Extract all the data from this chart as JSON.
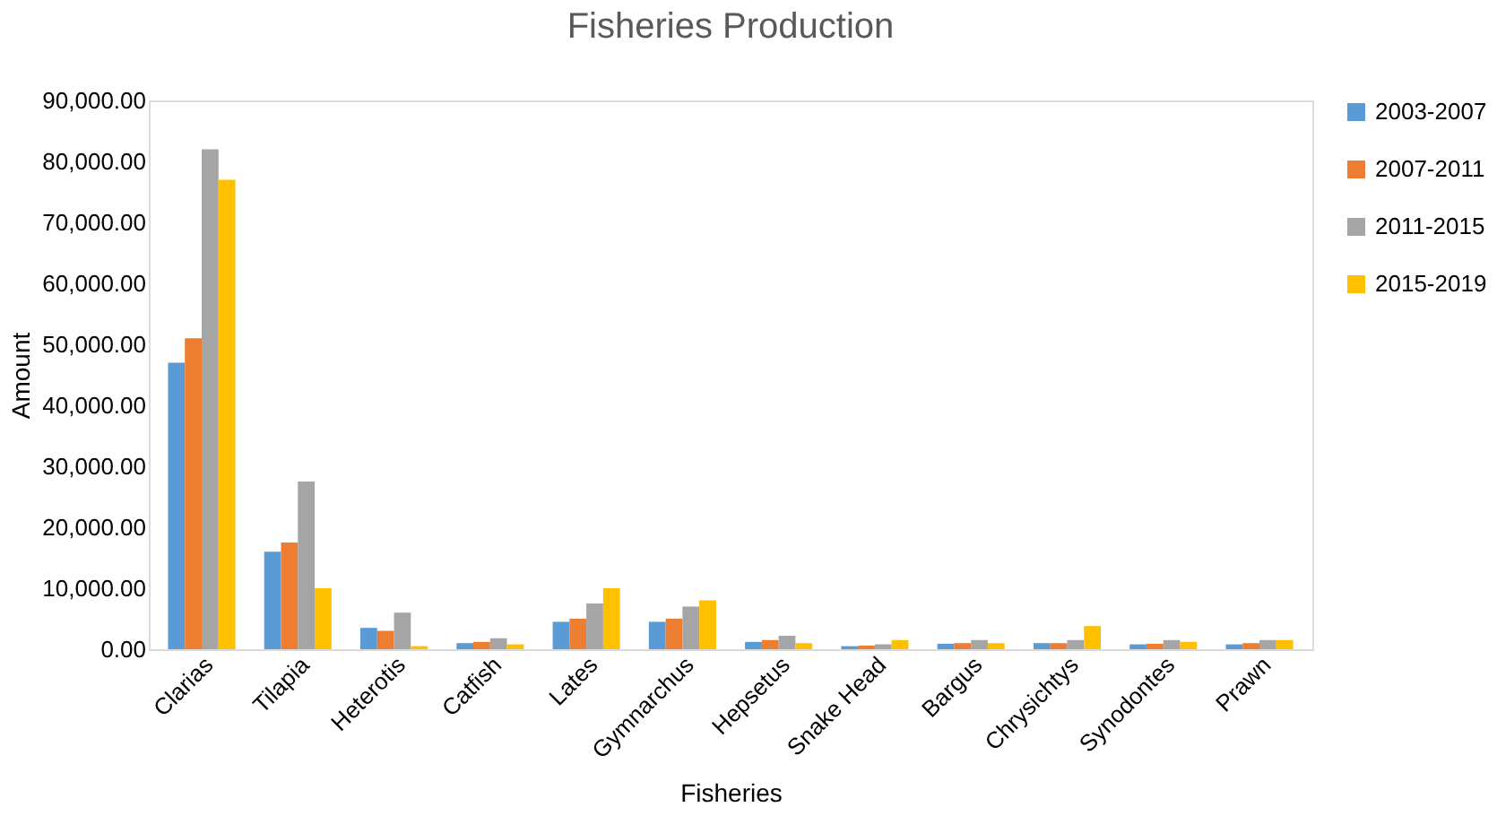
{
  "chart_data": {
    "type": "bar",
    "title": "Fisheries Production",
    "xlabel": "Fisheries",
    "ylabel": "Amount",
    "categories": [
      "Clarias",
      "Tilapia",
      "Heterotis",
      "Catfish",
      "Lates",
      "Gymnarchus",
      "Hepsetus",
      "Snake Head",
      "Bargus",
      "Chrysichtys",
      "Synodontes",
      "Prawn"
    ],
    "series": [
      {
        "name": "2003-2007",
        "color": "#5b9bd5",
        "values": [
          47000,
          16000,
          3500,
          1000,
          4500,
          4500,
          1200,
          500,
          900,
          1000,
          800,
          800
        ]
      },
      {
        "name": "2007-2011",
        "color": "#ed7d31",
        "values": [
          51000,
          17500,
          3000,
          1200,
          5000,
          5000,
          1500,
          600,
          1000,
          1000,
          900,
          1000
        ]
      },
      {
        "name": "2011-2015",
        "color": "#a5a5a5",
        "values": [
          82000,
          27500,
          6000,
          1800,
          7500,
          7000,
          2200,
          800,
          1500,
          1500,
          1500,
          1500
        ]
      },
      {
        "name": "2015-2019",
        "color": "#ffc000",
        "values": [
          77000,
          10000,
          500,
          800,
          10000,
          8000,
          1000,
          1500,
          1000,
          3800,
          1200,
          1500
        ]
      }
    ],
    "ylim": [
      0,
      90000
    ],
    "yticks": [
      {
        "value": 0,
        "label": "0.00"
      },
      {
        "value": 10000,
        "label": "10,000.00"
      },
      {
        "value": 20000,
        "label": "20,000.00"
      },
      {
        "value": 30000,
        "label": "30,000.00"
      },
      {
        "value": 40000,
        "label": "40,000.00"
      },
      {
        "value": 50000,
        "label": "50,000.00"
      },
      {
        "value": 60000,
        "label": "60,000.00"
      },
      {
        "value": 70000,
        "label": "70,000.00"
      },
      {
        "value": 80000,
        "label": "80,000.00"
      },
      {
        "value": 90000,
        "label": "90,000.00"
      }
    ],
    "grid": false,
    "legend": "right"
  }
}
